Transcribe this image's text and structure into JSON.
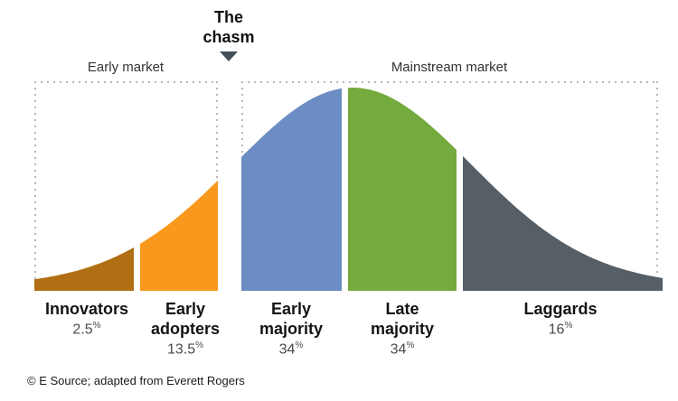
{
  "title": {
    "line1": "The",
    "line2": "chasm"
  },
  "markets": {
    "early": {
      "label": "Early market"
    },
    "mainstream": {
      "label": "Mainstream market"
    }
  },
  "footer": "© E Source; adapted from Everett Rogers",
  "chart_data": {
    "type": "area",
    "title": "Technology adoption bell curve with the chasm",
    "unit": "%",
    "curve": "normal distribution, segments split by adopter category",
    "segments": [
      {
        "label": "Innovators",
        "percent": 2.5,
        "color": "#B06F12"
      },
      {
        "label": "Early adopters",
        "percent": 13.5,
        "color": "#F8981D"
      },
      {
        "label": "Early majority",
        "percent": 34,
        "color": "#6B8DC4"
      },
      {
        "label": "Late majority",
        "percent": 34,
        "color": "#74AA3E"
      },
      {
        "label": "Laggards",
        "percent": 16,
        "color": "#565F66"
      }
    ],
    "groups": [
      {
        "label": "Early market",
        "segments": [
          "Innovators",
          "Early adopters"
        ]
      },
      {
        "label": "Mainstream market",
        "segments": [
          "Early majority",
          "Late majority",
          "Laggards"
        ]
      }
    ],
    "annotations": [
      {
        "text": "The chasm",
        "position": "gap between Early adopters and Early majority"
      }
    ],
    "legend": "none",
    "grid": "off"
  }
}
